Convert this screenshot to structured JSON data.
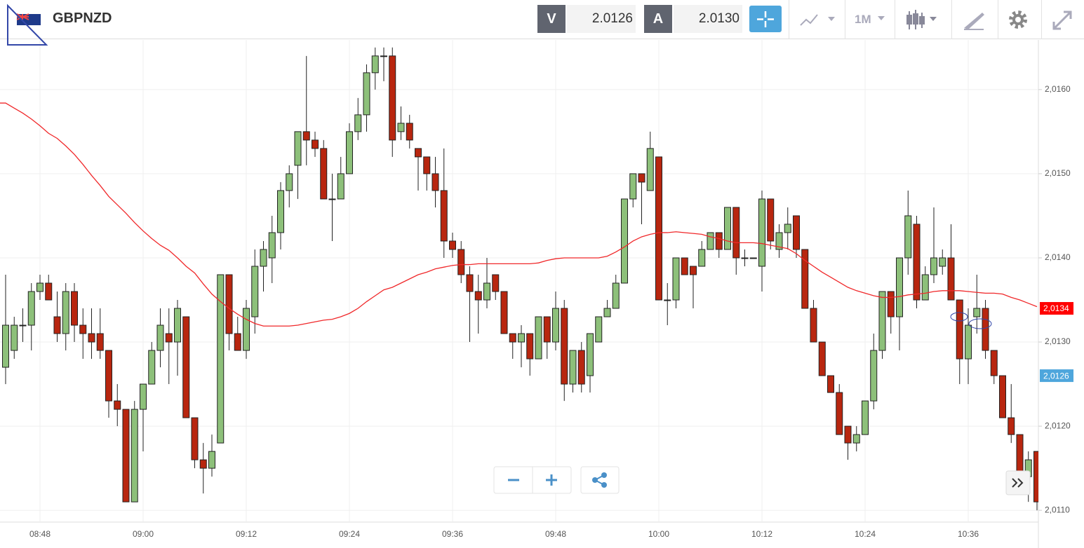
{
  "header": {
    "symbol": "GBPNZD",
    "bid_label": "V",
    "bid": "2.0126",
    "ask_label": "A",
    "ask": "2.0130",
    "timeframe": "1M"
  },
  "chart_data": {
    "type": "candlestick",
    "categories": [
      null,
      null,
      null,
      null,
      "08:48",
      null,
      null,
      null,
      null,
      null,
      null,
      null,
      null,
      null,
      null,
      null,
      "09:00",
      null,
      null,
      null,
      null,
      null,
      null,
      null,
      null,
      null,
      null,
      null,
      "09:12",
      null,
      null,
      null,
      null,
      null,
      null,
      null,
      null,
      null,
      null,
      null,
      "09:24",
      null,
      null,
      null,
      null,
      null,
      null,
      null,
      null,
      null,
      null,
      null,
      "09:36",
      null,
      null,
      null,
      null,
      null,
      null,
      null,
      null,
      null,
      null,
      null,
      "09:48",
      null,
      null,
      null,
      null,
      null,
      null,
      null,
      null,
      null,
      null,
      null,
      "10:00",
      null,
      null,
      null,
      null,
      null,
      null,
      null,
      null,
      null,
      null,
      null,
      "10:12",
      null,
      null,
      null,
      null,
      null,
      null,
      null,
      null,
      null,
      null,
      null,
      "10:24",
      null,
      null,
      null,
      null,
      null,
      null,
      null,
      null,
      null,
      null,
      null,
      "10:36",
      null,
      null,
      null,
      null,
      null,
      null,
      null,
      null
    ],
    "open": [
      2.0127,
      2.0129,
      2.0132,
      2.0132,
      2.0136,
      2.0137,
      2.0133,
      2.0131,
      2.0136,
      2.0132,
      2.0131,
      2.0131,
      2.0129,
      2.0123,
      2.0122,
      2.0111,
      2.0122,
      2.0125,
      2.0129,
      2.0131,
      2.013,
      2.0133,
      2.0121,
      2.0116,
      2.0115,
      2.0118,
      2.0138,
      2.0131,
      2.0129,
      2.0133,
      2.0139,
      2.014,
      2.0143,
      2.0148,
      2.0151,
      2.0155,
      2.0154,
      2.0153,
      2.0147,
      2.0147,
      2.015,
      2.0155,
      2.0157,
      2.0162,
      2.0164,
      2.0164,
      2.0155,
      2.0156,
      2.0153,
      2.0152,
      2.015,
      2.0148,
      2.0142,
      2.0141,
      2.0138,
      2.0136,
      2.0135,
      2.0138,
      2.0136,
      2.0131,
      2.013,
      2.0131,
      2.0128,
      2.0133,
      2.013,
      2.0134,
      2.0125,
      2.0129,
      2.0126,
      2.013,
      2.0133,
      2.0134,
      2.0137,
      2.0147,
      2.015,
      2.0148,
      2.0152,
      2.0135,
      2.0135,
      2.014,
      2.0139,
      2.0139,
      2.0141,
      2.0143,
      2.0141,
      2.0146,
      2.014,
      2.014,
      2.0139,
      2.0147,
      2.0141,
      2.0143,
      2.0145,
      2.0141,
      2.0134,
      2.013,
      2.0126,
      2.0124,
      2.012,
      2.0118,
      2.0119,
      2.0123,
      2.0129,
      2.0136,
      2.0133,
      2.014,
      2.0144,
      2.0135,
      2.0138,
      2.0139,
      2.014,
      2.0135,
      2.0128,
      2.0133,
      2.0134,
      2.0129,
      2.0126,
      2.0121,
      2.0119,
      2.0114,
      2.0117
    ],
    "high": [
      2.0138,
      2.0133,
      2.0134,
      2.0137,
      2.0138,
      2.0138,
      2.0136,
      2.0137,
      2.0137,
      2.0134,
      2.0134,
      2.0134,
      2.0129,
      2.0125,
      2.0122,
      2.0123,
      2.0125,
      2.013,
      2.0134,
      2.0134,
      2.0135,
      2.0133,
      2.0121,
      2.0118,
      2.0119,
      2.0138,
      2.0138,
      2.0133,
      2.0135,
      2.0141,
      2.0142,
      2.0145,
      2.0149,
      2.0151,
      2.0155,
      2.0164,
      2.0155,
      2.0154,
      2.015,
      2.0152,
      2.0156,
      2.0159,
      2.0163,
      2.0165,
      2.0165,
      2.0165,
      2.0158,
      2.0157,
      2.0153,
      2.0152,
      2.0152,
      2.0153,
      2.0143,
      2.0142,
      2.0139,
      2.0138,
      2.014,
      2.0138,
      2.0136,
      2.0131,
      2.0132,
      2.0131,
      2.0133,
      2.0133,
      2.0136,
      2.0135,
      2.0129,
      2.013,
      2.0131,
      2.0133,
      2.0135,
      2.0138,
      2.0147,
      2.015,
      2.015,
      2.0155,
      2.0152,
      2.0137,
      2.014,
      2.014,
      2.0139,
      2.0142,
      2.0143,
      2.0143,
      2.0146,
      2.0146,
      2.0141,
      2.014,
      2.0148,
      2.0147,
      2.0144,
      2.0146,
      2.0145,
      2.0141,
      2.0135,
      2.013,
      2.0126,
      2.0125,
      2.012,
      2.012,
      2.0123,
      2.0131,
      2.0136,
      2.0136,
      2.014,
      2.0148,
      2.0145,
      2.0139,
      2.0146,
      2.0141,
      2.0144,
      2.0135,
      2.0134,
      2.0138,
      2.0135,
      2.0129,
      2.0126,
      2.0125,
      2.0119,
      2.0117,
      2.0117
    ],
    "low": [
      2.0125,
      2.0128,
      2.013,
      2.0129,
      2.0135,
      2.0135,
      2.013,
      2.0129,
      2.013,
      2.0128,
      2.0128,
      2.0128,
      2.0121,
      2.012,
      2.0111,
      2.0111,
      2.0117,
      2.0125,
      2.0127,
      2.0125,
      2.0126,
      2.0121,
      2.0115,
      2.0112,
      2.0114,
      2.0118,
      2.0129,
      2.0129,
      2.0128,
      2.0131,
      2.0136,
      2.0137,
      2.0141,
      2.0146,
      2.0147,
      2.0151,
      2.0152,
      2.0147,
      2.0142,
      2.0147,
      2.015,
      2.0154,
      2.0155,
      2.016,
      2.0161,
      2.0152,
      2.0154,
      2.0153,
      2.0148,
      2.0148,
      2.0146,
      2.014,
      2.014,
      2.0137,
      2.013,
      2.0131,
      2.0134,
      2.0135,
      2.0131,
      2.0128,
      2.0127,
      2.0126,
      2.0128,
      2.0128,
      2.0129,
      2.0123,
      2.0124,
      2.0124,
      2.0124,
      2.013,
      2.0133,
      2.0134,
      2.0137,
      2.0146,
      2.0144,
      2.0148,
      2.0135,
      2.0132,
      2.0134,
      2.0138,
      2.0134,
      2.0139,
      2.0141,
      2.014,
      2.0141,
      2.0138,
      2.0139,
      2.014,
      2.0136,
      2.0141,
      2.014,
      2.0141,
      2.014,
      2.0134,
      2.013,
      2.0126,
      2.0124,
      2.0119,
      2.0116,
      2.0117,
      2.0119,
      2.0122,
      2.0128,
      2.0131,
      2.0129,
      2.0138,
      2.0134,
      2.0135,
      2.0137,
      2.0138,
      2.0135,
      2.0125,
      2.0125,
      2.0131,
      2.0128,
      2.0125,
      2.0121,
      2.0118,
      2.0112,
      2.0111,
      2.011
    ],
    "close": [
      2.0132,
      2.0132,
      2.0132,
      2.0136,
      2.0137,
      2.0135,
      2.0131,
      2.0136,
      2.0132,
      2.0131,
      2.013,
      2.0129,
      2.0123,
      2.0122,
      2.0111,
      2.0122,
      2.0125,
      2.0129,
      2.0132,
      2.013,
      2.0134,
      2.0121,
      2.0116,
      2.0115,
      2.0117,
      2.0138,
      2.0131,
      2.0129,
      2.0134,
      2.0139,
      2.0141,
      2.0143,
      2.0148,
      2.015,
      2.0155,
      2.0154,
      2.0153,
      2.0147,
      2.0147,
      2.015,
      2.0155,
      2.0157,
      2.0162,
      2.0164,
      2.0164,
      2.0154,
      2.0156,
      2.0154,
      2.0152,
      2.015,
      2.0148,
      2.0142,
      2.0141,
      2.0138,
      2.0136,
      2.0135,
      2.0137,
      2.0136,
      2.0131,
      2.013,
      2.0131,
      2.0128,
      2.0133,
      2.013,
      2.0134,
      2.0125,
      2.0129,
      2.0125,
      2.0131,
      2.0133,
      2.0134,
      2.0137,
      2.0147,
      2.015,
      2.0149,
      2.0153,
      2.0135,
      2.0135,
      2.014,
      2.0138,
      2.0138,
      2.0141,
      2.0143,
      2.0141,
      2.0146,
      2.014,
      2.014,
      2.014,
      2.0147,
      2.0142,
      2.0143,
      2.0144,
      2.0141,
      2.0134,
      2.013,
      2.0126,
      2.0124,
      2.0119,
      2.0118,
      2.0119,
      2.0123,
      2.0129,
      2.0136,
      2.0133,
      2.014,
      2.0145,
      2.0135,
      2.0138,
      2.014,
      2.014,
      2.0135,
      2.0128,
      2.0132,
      2.0134,
      2.0129,
      2.0126,
      2.0121,
      2.0119,
      2.0114,
      2.0116,
      2.0111
    ],
    "ma_values": [
      2.01584,
      2.01578,
      2.01572,
      2.01565,
      2.01557,
      2.01548,
      2.01542,
      2.01533,
      2.01523,
      2.01511,
      2.01498,
      2.01486,
      2.01473,
      2.01463,
      2.01453,
      2.01442,
      2.01432,
      2.01423,
      2.01415,
      2.01409,
      2.014,
      2.0139,
      2.01382,
      2.01369,
      2.01357,
      2.01348,
      2.0134,
      2.01333,
      2.01327,
      2.01322,
      2.01319,
      2.01319,
      2.01319,
      2.01319,
      2.0132,
      2.01322,
      2.01324,
      2.01326,
      2.01327,
      2.0133,
      2.01334,
      2.0134,
      2.01348,
      2.01355,
      2.01362,
      2.01365,
      2.0137,
      2.01375,
      2.0138,
      2.01383,
      2.01387,
      2.01389,
      2.01391,
      2.01392,
      2.01392,
      2.01393,
      2.01393,
      2.01393,
      2.01393,
      2.01393,
      2.01393,
      2.01393,
      2.01394,
      2.01397,
      2.01399,
      2.014,
      2.014,
      2.014,
      2.014,
      2.014,
      2.01402,
      2.01407,
      2.01413,
      2.0142,
      2.01425,
      2.01428,
      2.0143,
      2.0143,
      2.01431,
      2.0143,
      2.01429,
      2.01428,
      2.01425,
      2.01423,
      2.0142,
      2.01418,
      2.01418,
      2.01418,
      2.01417,
      2.01415,
      2.01413,
      2.01411,
      2.01405,
      2.01397,
      2.0139,
      2.01383,
      2.01377,
      2.01371,
      2.01365,
      2.01361,
      2.01358,
      2.01355,
      2.01353,
      2.01353,
      2.01354,
      2.01356,
      2.01357,
      2.01358,
      2.0136,
      2.01361,
      2.01361,
      2.01361,
      2.0136,
      2.01359,
      2.01358,
      2.01358,
      2.01357,
      2.01353,
      2.0135,
      2.01346,
      2.01342
    ],
    "up_color": "#8dc07a",
    "down_color": "#b8260f",
    "ma_color": "#f0282a",
    "ylim": [
      2.01086,
      2.01659
    ],
    "yticks": [
      {
        "value": 2.011,
        "label": "2,0110"
      },
      {
        "value": 2.012,
        "label": "2,0120"
      },
      {
        "value": 2.013,
        "label": "2,0130"
      },
      {
        "value": 2.014,
        "label": "2,0140"
      },
      {
        "value": 2.015,
        "label": "2,0150"
      },
      {
        "value": 2.016,
        "label": "2,0160"
      }
    ],
    "price_markers": [
      {
        "value": 2.0134,
        "label": "2,0134",
        "color": "#ff0000"
      },
      {
        "value": 2.0126,
        "label": "2,0126",
        "color": "#4ea6dc"
      }
    ],
    "grid": true
  }
}
